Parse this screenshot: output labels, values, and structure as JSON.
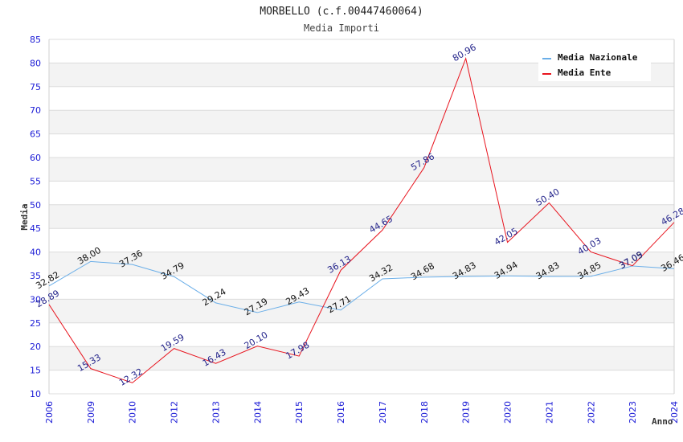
{
  "chart_data": {
    "type": "line",
    "title": "MORBELLO (c.f.00447460064)",
    "subtitle": "Media Importi",
    "xlabel": "Anno",
    "ylabel": "Media",
    "ylim": [
      10,
      85
    ],
    "yticks": [
      10,
      15,
      20,
      25,
      30,
      35,
      40,
      45,
      50,
      55,
      60,
      65,
      70,
      75,
      80,
      85
    ],
    "grid": true,
    "legend_position": "top-right",
    "categories": [
      "2006",
      "2009",
      "2010",
      "2012",
      "2013",
      "2014",
      "2015",
      "2016",
      "2017",
      "2018",
      "2019",
      "2020",
      "2021",
      "2022",
      "2023",
      "2024"
    ],
    "series": [
      {
        "name": "Media Nazionale",
        "color": "#6aaee8",
        "values": [
          32.82,
          38.0,
          37.36,
          34.79,
          29.24,
          27.19,
          29.43,
          27.71,
          34.32,
          34.68,
          34.83,
          34.94,
          34.83,
          34.85,
          37.05,
          36.46
        ],
        "labels": [
          "32.82",
          "38.00",
          "37.36",
          "34.79",
          "29.24",
          "27.19",
          "29.43",
          "27.71",
          "34.32",
          "34.68",
          "34.83",
          "34.94",
          "34.83",
          "34.85",
          "37.05",
          "36.46"
        ]
      },
      {
        "name": "Media Ente",
        "color": "#e8141e",
        "values": [
          28.89,
          15.33,
          12.32,
          19.59,
          16.43,
          20.1,
          17.98,
          36.13,
          44.65,
          57.86,
          80.96,
          42.05,
          50.4,
          40.03,
          37.09,
          46.28
        ],
        "labels": [
          "28.89",
          "15.33",
          "12.32",
          "19.59",
          "16.43",
          "20.10",
          "17.98",
          "36.13",
          "44.65",
          "57.86",
          "80.96",
          "42.05",
          "50.40",
          "40.03",
          "37.09",
          "46.28"
        ]
      }
    ]
  }
}
